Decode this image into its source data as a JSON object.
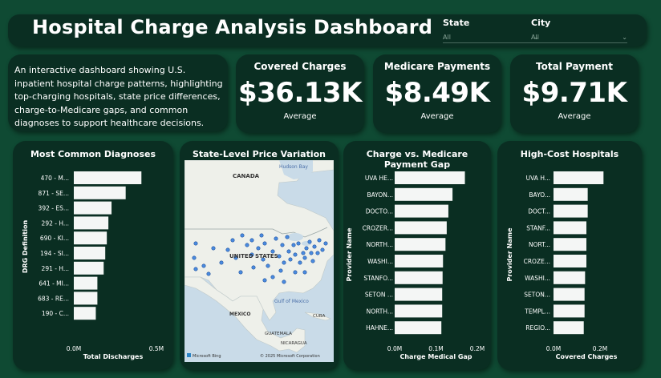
{
  "header": {
    "title": "Hospital Charge Analysis Dashboard",
    "state_label": "State",
    "state_value": "All",
    "city_label": "City",
    "city_value": "All"
  },
  "description": "An interactive dashboard showing U.S. inpatient hospital charge patterns, highlighting top-charging hospitals, state price differences, charge-to-Medicare gaps, and common diagnoses to support healthcare decisions.",
  "kpis": [
    {
      "title": "Covered Charges",
      "value": "$36.13K",
      "sub": "Average"
    },
    {
      "title": "Medicare Payments",
      "value": "$8.49K",
      "sub": "Average"
    },
    {
      "title": "Total Payment",
      "value": "$9.71K",
      "sub": "Average"
    }
  ],
  "map": {
    "title": "State-Level Price Variation",
    "labels": {
      "canada": "CANADA",
      "hudson": "Hudson Bay",
      "us": "UNITED STATES",
      "gulf": "Gulf of Mexico",
      "mexico": "MEXICO",
      "cuba": "CUBA",
      "guatemala": "GUATEMALA",
      "nicaragua": "NICARAGUA"
    },
    "credit_left": "Microsoft Bing",
    "credit_right": "© 2025 Microsoft Corporation"
  },
  "chart_data": [
    {
      "type": "bar",
      "orientation": "horizontal",
      "title": "Most Common Diagnoses",
      "ylabel": "DRG Definition",
      "xlabel": "Total Discharges",
      "xlim": [
        0,
        0.5
      ],
      "xticks": [
        "0.0M",
        "0.5M"
      ],
      "categories": [
        "470 - M...",
        "871 - SE...",
        "392 - ES...",
        "292 - H...",
        "690 - KI...",
        "194 - SI...",
        "291 - H...",
        "641 - MI...",
        "683 - RE...",
        "190 - C..."
      ],
      "values": [
        0.43,
        0.33,
        0.24,
        0.22,
        0.21,
        0.2,
        0.19,
        0.15,
        0.15,
        0.14
      ]
    },
    {
      "type": "bar",
      "orientation": "horizontal",
      "title": "Charge vs. Medicare Payment Gap",
      "ylabel": "Provider Name",
      "xlabel": "Charge Medical Gap",
      "xlim": [
        0,
        0.2
      ],
      "xticks": [
        "0.0M",
        "0.1M",
        "0.2M"
      ],
      "categories": [
        "UVA HE...",
        "BAYON...",
        "DOCTO...",
        "CROZER...",
        "NORTH...",
        "WASHI...",
        "STANFO...",
        "SETON ...",
        "NORTH...",
        "HAHNE..."
      ],
      "values": [
        0.17,
        0.14,
        0.13,
        0.126,
        0.123,
        0.117,
        0.116,
        0.115,
        0.115,
        0.113
      ]
    },
    {
      "type": "bar",
      "orientation": "horizontal",
      "title": "High-Cost Hospitals",
      "ylabel": "Provider Name",
      "xlabel": "Covered Charges",
      "xlim": [
        0,
        0.25
      ],
      "xticks": [
        "0.0M",
        "0.2M"
      ],
      "categories": [
        "UVA H...",
        "BAYO...",
        "DOCT...",
        "STANF...",
        "NORT...",
        "CROZE...",
        "WASHI...",
        "SETON...",
        "TEMPL...",
        "REGIO..."
      ],
      "values": [
        0.19,
        0.13,
        0.13,
        0.125,
        0.125,
        0.125,
        0.12,
        0.118,
        0.118,
        0.115
      ]
    }
  ]
}
